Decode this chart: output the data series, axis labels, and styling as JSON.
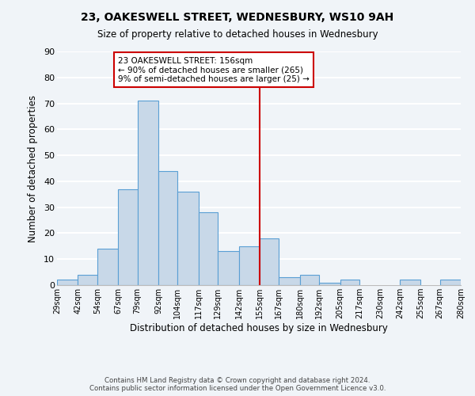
{
  "title": "23, OAKESWELL STREET, WEDNESBURY, WS10 9AH",
  "subtitle": "Size of property relative to detached houses in Wednesbury",
  "xlabel": "Distribution of detached houses by size in Wednesbury",
  "ylabel": "Number of detached properties",
  "bar_color": "#c8d8e8",
  "bar_edge_color": "#5a9fd4",
  "background_color": "#f0f4f8",
  "grid_color": "#ffffff",
  "bins": [
    29,
    42,
    54,
    67,
    79,
    92,
    104,
    117,
    129,
    142,
    155,
    167,
    180,
    192,
    205,
    217,
    230,
    242,
    255,
    267,
    280
  ],
  "counts": [
    2,
    4,
    14,
    37,
    71,
    44,
    36,
    28,
    13,
    15,
    18,
    3,
    4,
    1,
    2,
    0,
    0,
    2,
    0,
    2
  ],
  "tick_labels": [
    "29sqm",
    "42sqm",
    "54sqm",
    "67sqm",
    "79sqm",
    "92sqm",
    "104sqm",
    "117sqm",
    "129sqm",
    "142sqm",
    "155sqm",
    "167sqm",
    "180sqm",
    "192sqm",
    "205sqm",
    "217sqm",
    "230sqm",
    "242sqm",
    "255sqm",
    "267sqm",
    "280sqm"
  ],
  "ylim": [
    0,
    90
  ],
  "yticks": [
    0,
    10,
    20,
    30,
    40,
    50,
    60,
    70,
    80,
    90
  ],
  "property_line_x": 155,
  "annotation_title": "23 OAKESWELL STREET: 156sqm",
  "annotation_line1": "← 90% of detached houses are smaller (265)",
  "annotation_line2": "9% of semi-detached houses are larger (25) →",
  "annotation_box_color": "#ffffff",
  "annotation_border_color": "#cc0000",
  "vline_color": "#cc0000",
  "footer_line1": "Contains HM Land Registry data © Crown copyright and database right 2024.",
  "footer_line2": "Contains public sector information licensed under the Open Government Licence v3.0."
}
